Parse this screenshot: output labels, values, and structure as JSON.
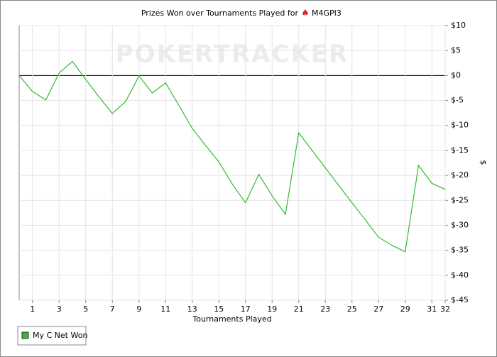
{
  "chart_data": {
    "type": "line",
    "title": "Prizes Won over Tournaments Played for",
    "player": "M4GPI3",
    "watermark": "POKERTRACKER",
    "x_label": "Tournaments Played",
    "y_label": "$",
    "x": [
      0,
      1,
      2,
      3,
      4,
      5,
      6,
      7,
      8,
      9,
      10,
      11,
      12,
      13,
      14,
      15,
      16,
      17,
      18,
      19,
      20,
      21,
      22,
      23,
      24,
      25,
      26,
      27,
      28,
      29,
      30,
      31,
      32
    ],
    "series": [
      {
        "name": "My C Net Won",
        "color": "#33bb33",
        "values": [
          0,
          -3.2,
          -4.9,
          0.5,
          2.8,
          -0.8,
          -4.3,
          -7.6,
          -5.2,
          -0.1,
          -3.5,
          -1.5,
          -6,
          -10.6,
          -14,
          -17.3,
          -21.7,
          -25.5,
          -19.8,
          -24.1,
          -27.8,
          -11.5,
          -15,
          -18.5,
          -22,
          -25.5,
          -28.9,
          -32.4,
          -34,
          -35.3,
          -18,
          -21.6,
          -22.8
        ]
      }
    ],
    "xlim": [
      0,
      32
    ],
    "xticks": [
      1,
      3,
      5,
      7,
      9,
      11,
      13,
      15,
      17,
      19,
      21,
      23,
      25,
      27,
      29,
      31,
      32
    ],
    "ylim": [
      -45,
      10
    ],
    "yticks": [
      {
        "value": 10,
        "label": "$10"
      },
      {
        "value": 5,
        "label": "$5"
      },
      {
        "value": 0,
        "label": "$0"
      },
      {
        "value": -5,
        "label": "$-5"
      },
      {
        "value": -10,
        "label": "$-10"
      },
      {
        "value": -15,
        "label": "$-15"
      },
      {
        "value": -20,
        "label": "$-20"
      },
      {
        "value": -25,
        "label": "$-25"
      },
      {
        "value": -30,
        "label": "$-30"
      },
      {
        "value": -35,
        "label": "$-35"
      },
      {
        "value": -40,
        "label": "$-40"
      },
      {
        "value": -45,
        "label": "$-45"
      }
    ],
    "grid": true
  }
}
